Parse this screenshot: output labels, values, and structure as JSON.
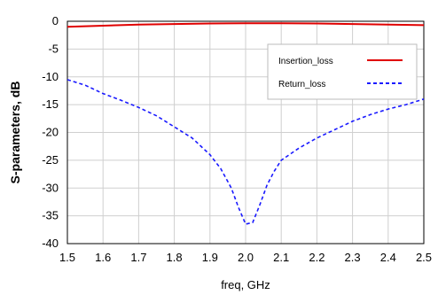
{
  "chart_data": {
    "type": "line",
    "title": "",
    "xlabel": "freq, GHz",
    "ylabel": "S-parameters, dB",
    "xlim": [
      1.5,
      2.5
    ],
    "ylim": [
      -40,
      0
    ],
    "xticks": [
      "1.5",
      "1.6",
      "1.7",
      "1.8",
      "1.9",
      "2.0",
      "2.1",
      "2.2",
      "2.3",
      "2.4",
      "2.5"
    ],
    "yticks": [
      "0",
      "-5",
      "-10",
      "-15",
      "-20",
      "-25",
      "-30",
      "-35",
      "-40"
    ],
    "grid": true,
    "legend_position": "top-right",
    "series": [
      {
        "name": "Insertion_loss",
        "color": "#e00000",
        "style": "solid",
        "x": [
          1.5,
          1.6,
          1.7,
          1.8,
          1.9,
          2.0,
          2.1,
          2.2,
          2.3,
          2.4,
          2.5
        ],
        "values": [
          -1.0,
          -0.8,
          -0.6,
          -0.5,
          -0.4,
          -0.35,
          -0.35,
          -0.4,
          -0.5,
          -0.6,
          -0.7
        ]
      },
      {
        "name": "Return_loss",
        "color": "#1a1aff",
        "style": "dashed",
        "x": [
          1.5,
          1.55,
          1.6,
          1.65,
          1.7,
          1.75,
          1.8,
          1.85,
          1.9,
          1.93,
          1.96,
          1.98,
          2.0,
          2.02,
          2.04,
          2.06,
          2.08,
          2.1,
          2.15,
          2.2,
          2.25,
          2.3,
          2.35,
          2.4,
          2.45,
          2.5
        ],
        "values": [
          -10.5,
          -11.5,
          -13.0,
          -14.2,
          -15.5,
          -17.0,
          -19.0,
          -21.0,
          -24.0,
          -26.5,
          -30.0,
          -33.5,
          -36.5,
          -36.2,
          -33.0,
          -29.5,
          -27.0,
          -25.0,
          -22.8,
          -21.0,
          -19.5,
          -18.0,
          -16.8,
          -15.8,
          -15.0,
          -14.0
        ]
      }
    ]
  }
}
